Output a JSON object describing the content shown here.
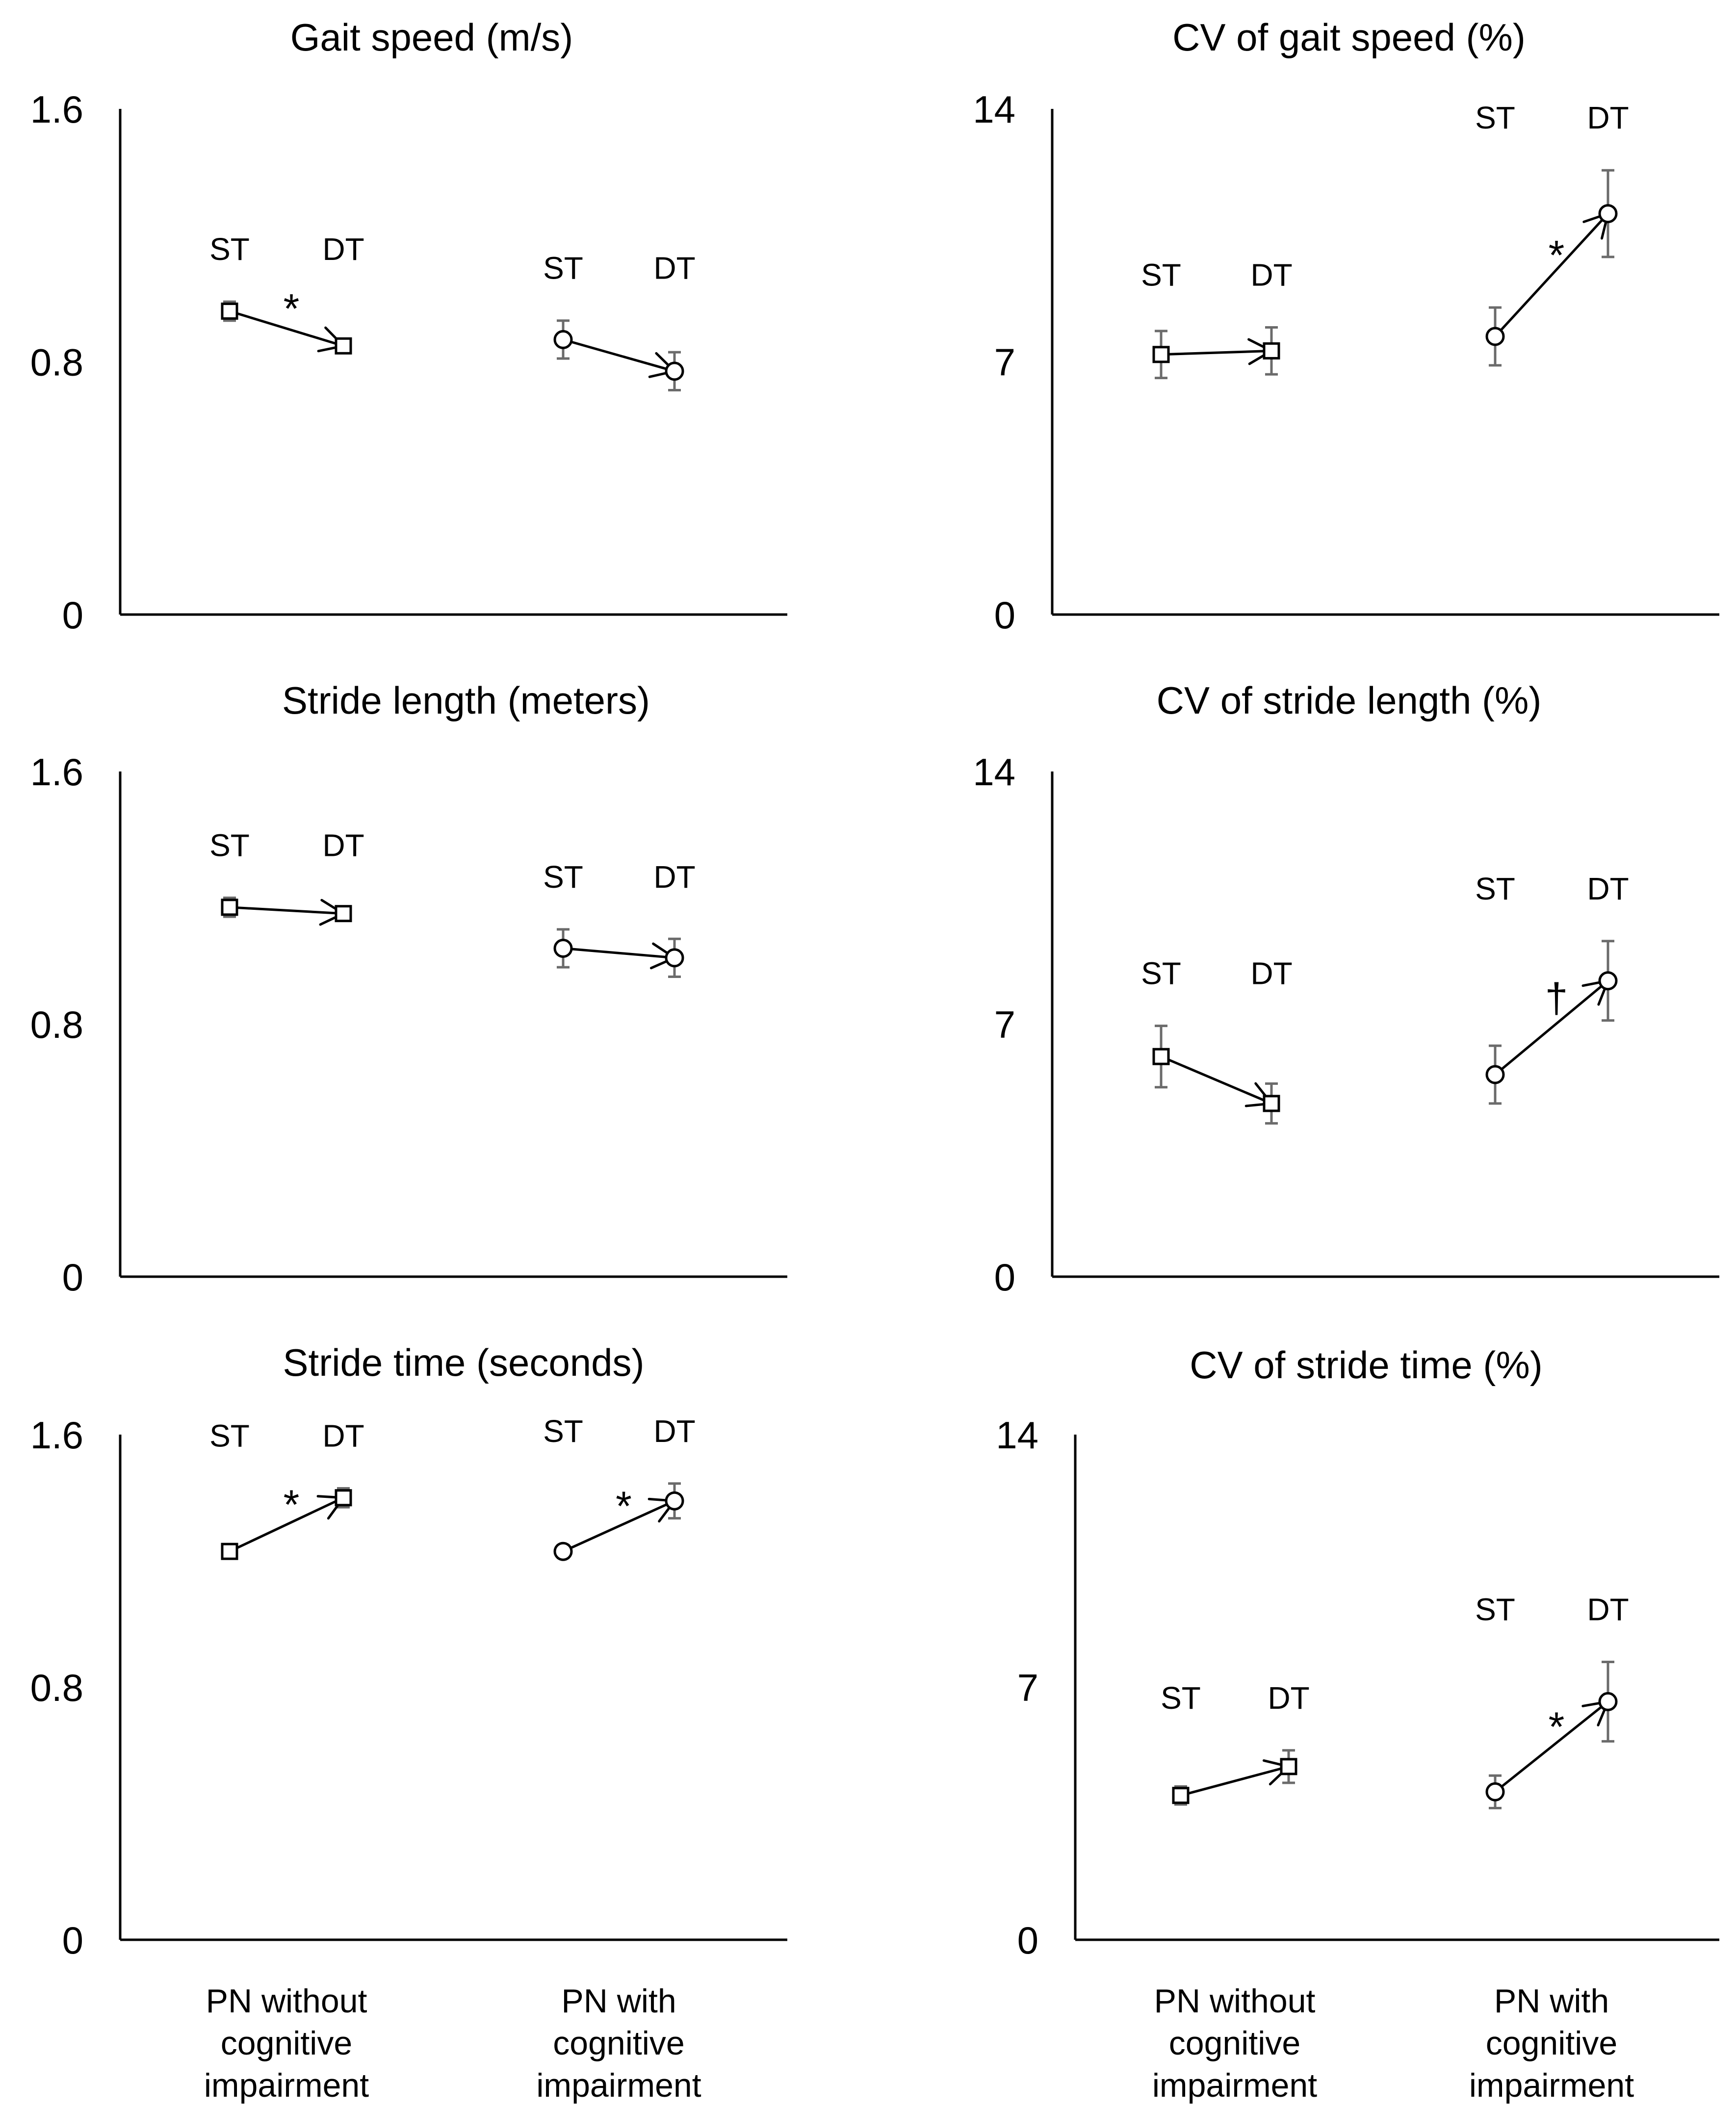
{
  "figure": {
    "x_categories": [
      [
        "PN without",
        "cognitive",
        "impairment"
      ],
      [
        "PN with",
        "cognitive",
        "impairment"
      ]
    ],
    "condition_labels": {
      "single": "ST",
      "dual": "DT"
    },
    "marker_shapes": {
      "group1": "square",
      "group2": "circle"
    },
    "colors": {
      "axis": "#000000",
      "error_bar": "#6b6b6b",
      "marker_fill": "#ffffff"
    }
  },
  "chart_data": [
    {
      "type": "scatter",
      "title": "Gait speed (m/s)",
      "ylim": [
        0,
        1.6
      ],
      "yticks": [
        "0",
        "0.8",
        "1.6"
      ],
      "groups": [
        {
          "name": "PN without cognitive impairment",
          "st": 0.96,
          "st_err": 0.03,
          "dt": 0.85,
          "dt_err": 0.02,
          "sig": "*"
        },
        {
          "name": "PN with cognitive impairment",
          "st": 0.87,
          "st_err": 0.06,
          "dt": 0.77,
          "dt_err": 0.06,
          "sig": ""
        }
      ]
    },
    {
      "type": "scatter",
      "title": "CV of gait speed (%)",
      "ylim": [
        0,
        14
      ],
      "yticks": [
        "0",
        "7",
        "14"
      ],
      "groups": [
        {
          "name": "PN without cognitive impairment",
          "st": 7.2,
          "st_err": 0.65,
          "dt": 7.3,
          "dt_err": 0.65,
          "sig": ""
        },
        {
          "name": "PN with cognitive impairment",
          "st": 7.7,
          "st_err": 0.8,
          "dt": 11.1,
          "dt_err": 1.2,
          "sig": "*"
        }
      ]
    },
    {
      "type": "scatter",
      "title": "Stride length (meters)",
      "ylim": [
        0,
        1.6
      ],
      "yticks": [
        "0",
        "0.8",
        "1.6"
      ],
      "groups": [
        {
          "name": "PN without cognitive impairment",
          "st": 1.17,
          "st_err": 0.03,
          "dt": 1.15,
          "dt_err": 0.02,
          "sig": ""
        },
        {
          "name": "PN with cognitive impairment",
          "st": 1.04,
          "st_err": 0.06,
          "dt": 1.01,
          "dt_err": 0.06,
          "sig": ""
        }
      ]
    },
    {
      "type": "scatter",
      "title": "CV of stride length (%)",
      "ylim": [
        0,
        14
      ],
      "yticks": [
        "0",
        "7",
        "14"
      ],
      "groups": [
        {
          "name": "PN without cognitive impairment",
          "st": 6.1,
          "st_err": 0.85,
          "dt": 4.8,
          "dt_err": 0.55,
          "sig": ""
        },
        {
          "name": "PN with cognitive impairment",
          "st": 5.6,
          "st_err": 0.8,
          "dt": 8.2,
          "dt_err": 1.1,
          "sig": "†"
        }
      ]
    },
    {
      "type": "scatter",
      "title": "Stride time (seconds)",
      "ylim": [
        0,
        1.6
      ],
      "yticks": [
        "0",
        "0.8",
        "1.6"
      ],
      "groups": [
        {
          "name": "PN without cognitive impairment",
          "st": 1.23,
          "st_err": 0.015,
          "dt": 1.4,
          "dt_err": 0.03,
          "sig": "*"
        },
        {
          "name": "PN with cognitive impairment",
          "st": 1.23,
          "st_err": 0.02,
          "dt": 1.39,
          "dt_err": 0.055,
          "sig": "*"
        }
      ]
    },
    {
      "type": "scatter",
      "title": "CV of stride time (%)",
      "ylim": [
        0,
        14
      ],
      "yticks": [
        "0",
        "7",
        "14"
      ],
      "groups": [
        {
          "name": "PN without cognitive impairment",
          "st": 4.0,
          "st_err": 0.25,
          "dt": 4.8,
          "dt_err": 0.45,
          "sig": ""
        },
        {
          "name": "PN with cognitive impairment",
          "st": 4.1,
          "st_err": 0.45,
          "dt": 6.6,
          "dt_err": 1.1,
          "sig": "*"
        }
      ]
    }
  ]
}
